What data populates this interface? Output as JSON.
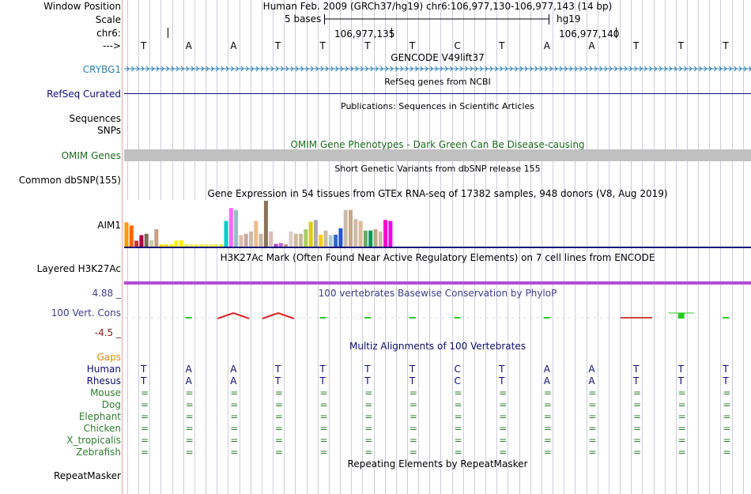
{
  "colors": {
    "crybg1": "#2b7fb4",
    "refseq": "#0c0c78",
    "omim": "#1e6b1e",
    "omim_bar": "#c0c0c0",
    "phylo_label": "#3d3d8f",
    "phylo_neg": "#8b1a1a",
    "phylo_pos_bar": "#22cc22",
    "phylo_neg_bar": "#dd2222",
    "gaps": "#e08a00",
    "mammal": "#2e7d2e",
    "primate": "#0c0c78",
    "h3k27ac_line": "#b24cd6"
  },
  "header": {
    "window_position_label": "Window Position",
    "window_position_value": "Human Feb. 2009 (GRCh37/hg19)   chr6:106,977,130-106,977,143 (14 bp)",
    "scale_label": "Scale",
    "scale_text": "5 bases",
    "assembly": "hg19",
    "chrom_label": "chr6:",
    "coord_1": "106,977,135",
    "coord_2": "106,977,140",
    "strand_label": "--->",
    "bases": [
      "T",
      "A",
      "A",
      "T",
      "T",
      "T",
      "T",
      "C",
      "T",
      "A",
      "A",
      "T",
      "T",
      "T"
    ]
  },
  "tracks": {
    "gencode": {
      "title": "GENCODE V49lift37",
      "gene": "CRYBG1"
    },
    "refseq": {
      "title": "RefSeq genes from NCBI",
      "label": "RefSeq Curated"
    },
    "publications": {
      "title": "Publications: Sequences in Scientific Articles",
      "label_1": "Sequences",
      "label_2": "SNPs"
    },
    "omim": {
      "title": "OMIM Gene Phenotypes - Dark Green Can Be Disease-causing",
      "label": "OMIM Genes"
    },
    "dbsnp": {
      "title": "Short Genetic Variants from dbSNP release 155",
      "label": "Common dbSNP(155)"
    },
    "gtex": {
      "title": "Gene Expression in 54 tissues from GTEx RNA-seq of 17382 samples, 948 donors (V8, Aug 2019)",
      "label": "AIM1"
    },
    "h3k27ac": {
      "title": "H3K27Ac Mark (Often Found Near Active Regulatory Elements) on 7 cell lines from ENCODE",
      "label": "Layered H3K27Ac"
    },
    "phylop": {
      "title": "100 vertebrates Basewise Conservation by PhyloP",
      "label": "100 Vert. Cons",
      "max": "4.88 _",
      "min": "-4.5 _"
    },
    "multiz": {
      "title": "Multiz Alignments of 100 Vertebrates",
      "gaps_label": "Gaps",
      "species": [
        {
          "name": "Human",
          "seq": [
            "T",
            "A",
            "A",
            "T",
            "T",
            "T",
            "T",
            "C",
            "T",
            "A",
            "A",
            "T",
            "T",
            "T"
          ],
          "kind": "primate"
        },
        {
          "name": "Rhesus",
          "seq": [
            "T",
            "A",
            "A",
            "T",
            "T",
            "T",
            "T",
            "C",
            "T",
            "A",
            "A",
            "T",
            "T",
            "T"
          ],
          "kind": "primate"
        },
        {
          "name": "Mouse",
          "seq": [
            "=",
            "=",
            "=",
            "=",
            "=",
            "=",
            "=",
            "=",
            "=",
            "=",
            "=",
            "=",
            "=",
            "="
          ],
          "kind": "mammal"
        },
        {
          "name": "Dog",
          "seq": [
            "=",
            "=",
            "=",
            "=",
            "=",
            "=",
            "=",
            "=",
            "=",
            "=",
            "=",
            "=",
            "=",
            "="
          ],
          "kind": "mammal"
        },
        {
          "name": "Elephant",
          "seq": [
            "=",
            "=",
            "=",
            "=",
            "=",
            "=",
            "=",
            "=",
            "=",
            "=",
            "=",
            "=",
            "=",
            "="
          ],
          "kind": "mammal"
        },
        {
          "name": "Chicken",
          "seq": [
            "=",
            "=",
            "=",
            "=",
            "=",
            "=",
            "=",
            "=",
            "=",
            "=",
            "=",
            "=",
            "=",
            "="
          ],
          "kind": "mammal"
        },
        {
          "name": "X_tropicalis",
          "seq": [
            "=",
            "=",
            "=",
            "=",
            "=",
            "=",
            "=",
            "=",
            "=",
            "=",
            "=",
            "=",
            "=",
            "="
          ],
          "kind": "mammal"
        },
        {
          "name": "Zebrafish",
          "seq": [
            "=",
            "=",
            "=",
            "=",
            "=",
            "=",
            "=",
            "=",
            "=",
            "=",
            "=",
            "=",
            "=",
            "="
          ],
          "kind": "mammal"
        }
      ]
    },
    "repeatmasker": {
      "title": "Repeating Elements by RepeatMasker",
      "label": "RepeatMasker"
    }
  },
  "gtex_levels": [
    0.53,
    0.46,
    0.13,
    0.25,
    0.28,
    0.14,
    0.38,
    0.05,
    0.05,
    0.05,
    0.13,
    0.14,
    0.05,
    0.05,
    0.05,
    0.05,
    0.05,
    0.05,
    0.05,
    0.05,
    0.56,
    0.84,
    0.8,
    0.25,
    0.28,
    0.33,
    0.56,
    0.28,
    1.0,
    0.33,
    0.06,
    0.08,
    0.05,
    0.33,
    0.28,
    0.28,
    0.38,
    0.54,
    0.58,
    0.26,
    0.35,
    0.25,
    0.26,
    0.4,
    0.8,
    0.8,
    0.6,
    0.56,
    0.35,
    0.35,
    0.38,
    0.33,
    0.58,
    0.56
  ],
  "gtex_colors": [
    "#ff9900",
    "#ff6600",
    "#cc3333",
    "#aa0044",
    "#7a6a5a",
    "#ccccaa",
    "#c8a080",
    "#ffdd00",
    "#ffdd00",
    "#ffee00",
    "#ffee00",
    "#ffee00",
    "#eeee44",
    "#eeee44",
    "#eeee44",
    "#eeee44",
    "#eeee44",
    "#eeee44",
    "#eeee44",
    "#eeee44",
    "#00cccc",
    "#ff66ff",
    "#99bbcc",
    "#ddbbaa",
    "#c8a8a0",
    "#ccbbaa",
    "#eebb88",
    "#c8b8a8",
    "#8b7355",
    "#ddbbbb",
    "#aa44cc",
    "#bb66cc",
    "#cc8888",
    "#ddcccc",
    "#ccbb99",
    "#c8b8a0",
    "#aacc66",
    "#ddcc00",
    "#aaaaaa",
    "#ffcc00",
    "#ccbb99",
    "#aacccc",
    "#3366cc",
    "#2255cc",
    "#ccbbaa",
    "#c8a888",
    "#ccbbaa",
    "#ddbb99",
    "#66aa66",
    "#009955",
    "#bbaa88",
    "#ccbbaa",
    "#ff00cc",
    "#ee00ee"
  ],
  "phylop_marks": [
    {
      "base": 1,
      "kind": "pos",
      "value": 0.04
    },
    {
      "base": 2,
      "kind": "arc",
      "value": -1.0
    },
    {
      "base": 3,
      "kind": "arc",
      "value": -1.0
    },
    {
      "base": 4,
      "kind": "pos",
      "value": 0.02
    },
    {
      "base": 5,
      "kind": "pos",
      "value": 0.02
    },
    {
      "base": 6,
      "kind": "pos",
      "value": 0.04
    },
    {
      "base": 7,
      "kind": "pos",
      "value": 0.04
    },
    {
      "base": 9,
      "kind": "pos",
      "value": 0.04
    },
    {
      "base": 11,
      "kind": "neg",
      "value": -0.05
    },
    {
      "base": 12,
      "kind": "pos",
      "value": 0.25
    },
    {
      "base": 13,
      "kind": "pos",
      "value": 0.04
    }
  ]
}
